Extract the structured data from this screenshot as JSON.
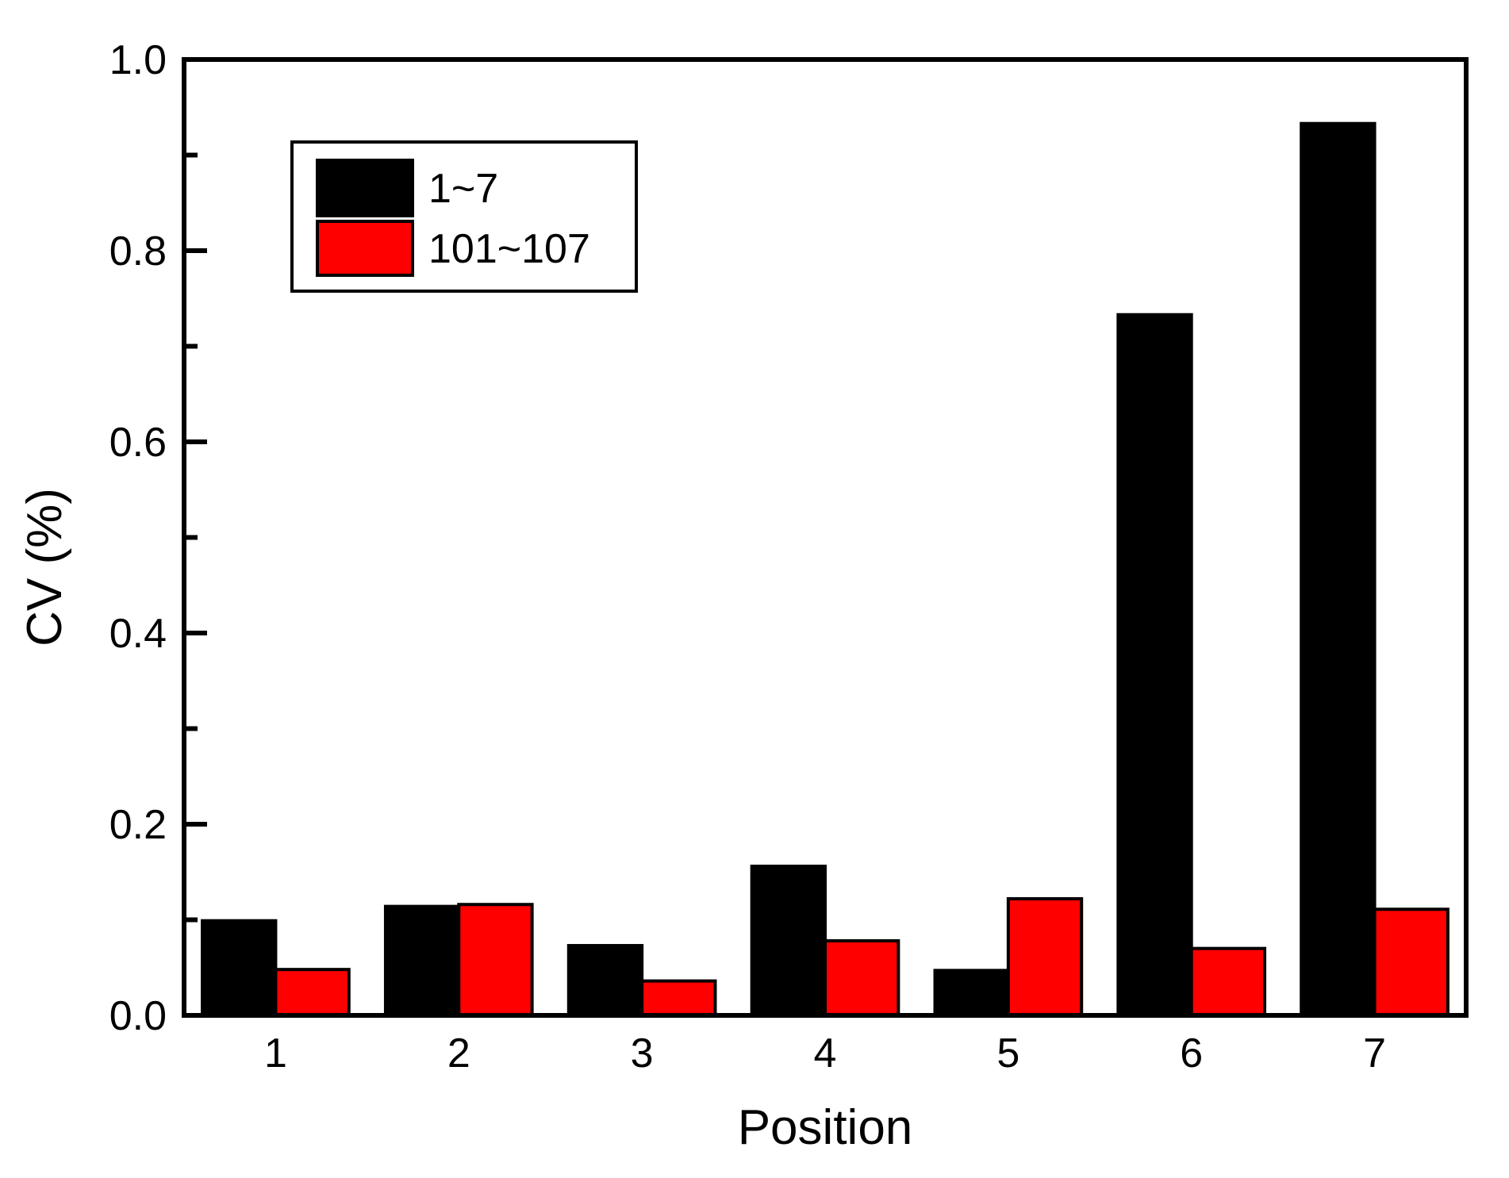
{
  "chart_data": {
    "type": "bar",
    "title": "",
    "xlabel": "Position",
    "ylabel": "CV (%)",
    "categories": [
      "1",
      "2",
      "3",
      "4",
      "5",
      "6",
      "7"
    ],
    "series": [
      {
        "name": "1~7",
        "color": "#000000",
        "values": [
          0.099,
          0.114,
          0.073,
          0.156,
          0.047,
          0.733,
          0.933
        ]
      },
      {
        "name": "101~107",
        "color": "#ff0000",
        "values": [
          0.048,
          0.116,
          0.036,
          0.078,
          0.122,
          0.07,
          0.111
        ]
      }
    ],
    "ylim": [
      0.0,
      1.0
    ],
    "xlim": [
      0.5,
      7.5
    ],
    "yticks_major": [
      {
        "value": 1.0,
        "label": "1.0"
      },
      {
        "value": 0.8,
        "label": "0.8"
      },
      {
        "value": 0.6,
        "label": "0.6"
      },
      {
        "value": 0.4,
        "label": "0.4"
      },
      {
        "value": 0.2,
        "label": "0.2"
      },
      {
        "value": 0.0,
        "label": "0.0"
      }
    ],
    "yticks_minor": [
      0.9,
      0.7,
      0.5,
      0.3,
      0.1
    ],
    "grid": false,
    "legend_position": "upper-left",
    "bar_outline_color": "#000000",
    "axis_color": "#000000",
    "background_color": "#ffffff"
  }
}
